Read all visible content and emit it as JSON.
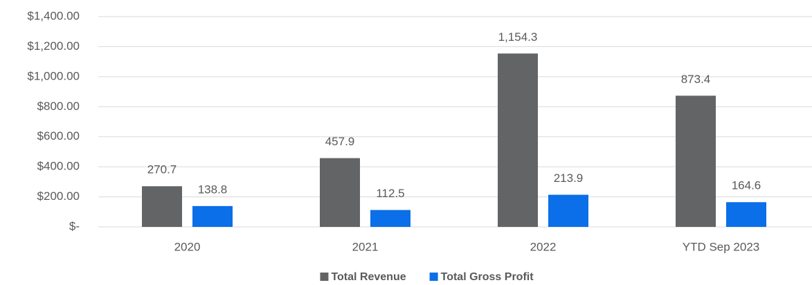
{
  "chart_data": {
    "type": "bar",
    "categories": [
      "2020",
      "2021",
      "2022",
      "YTD Sep 2023"
    ],
    "series": [
      {
        "name": "Total Revenue",
        "color": "#636466",
        "values": [
          270.7,
          457.9,
          1154.3,
          873.4
        ],
        "value_labels": [
          "270.7",
          "457.9",
          "1,154.3",
          "873.4"
        ]
      },
      {
        "name": "Total Gross Profit",
        "color": "#0a6fe8",
        "values": [
          138.8,
          112.5,
          213.9,
          164.6
        ],
        "value_labels": [
          "138.8",
          "112.5",
          "213.9",
          "164.6"
        ]
      }
    ],
    "ylim": [
      0,
      1400
    ],
    "yticks": [
      {
        "value": 0,
        "label": "$-"
      },
      {
        "value": 200,
        "label": "$200.00"
      },
      {
        "value": 400,
        "label": "$400.00"
      },
      {
        "value": 600,
        "label": "$600.00"
      },
      {
        "value": 800,
        "label": "$800.00"
      },
      {
        "value": 1000,
        "label": "$1,000.00"
      },
      {
        "value": 1200,
        "label": "$1,200.00"
      },
      {
        "value": 1400,
        "label": "$1,400.00"
      }
    ],
    "grid": true,
    "legend": "bottom"
  }
}
